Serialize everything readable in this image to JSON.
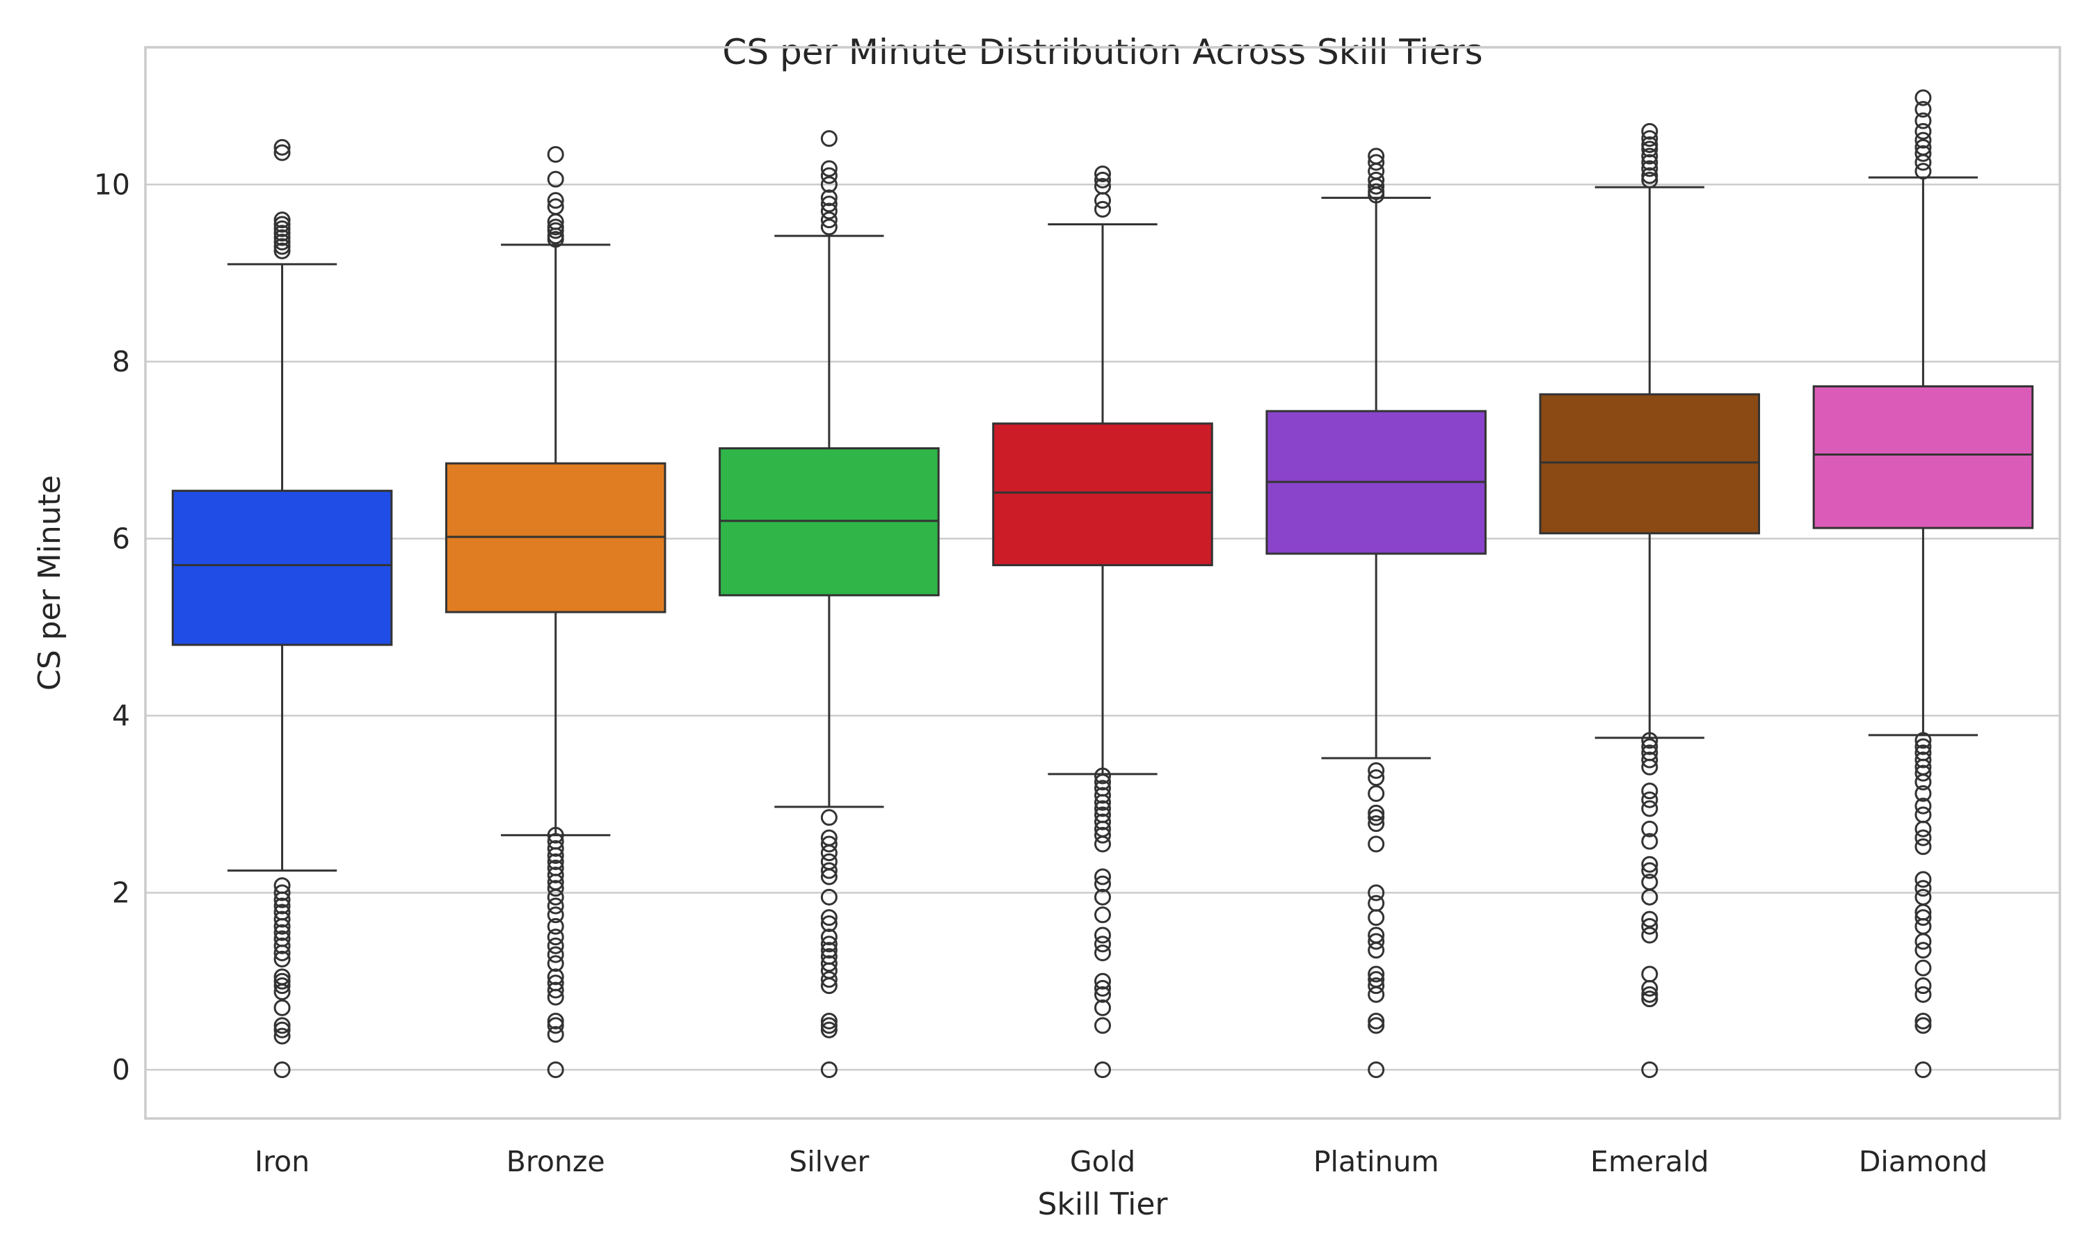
{
  "chart_data": {
    "type": "box",
    "title": "CS per Minute Distribution Across Skill Tiers",
    "xlabel": "Skill Tier",
    "ylabel": "CS per Minute",
    "ylim": [
      -0.55,
      11.55
    ],
    "yticks": [
      0,
      2,
      4,
      6,
      8,
      10
    ],
    "grid": true,
    "categories": [
      "Iron",
      "Bronze",
      "Silver",
      "Gold",
      "Platinum",
      "Emerald",
      "Diamond"
    ],
    "series": [
      {
        "category": "Iron",
        "color": "#1f4de6",
        "whisker_low": 2.25,
        "q1": 4.8,
        "median": 5.7,
        "q3": 6.54,
        "whisker_high": 9.1,
        "outliers": [
          10.42,
          10.36,
          9.6,
          9.55,
          9.5,
          9.45,
          9.4,
          9.35,
          9.3,
          9.25,
          2.08,
          2.0,
          1.92,
          1.85,
          1.78,
          1.7,
          1.62,
          1.55,
          1.48,
          1.4,
          1.32,
          1.25,
          1.05,
          1.0,
          0.95,
          0.88,
          0.7,
          0.5,
          0.45,
          0.38,
          0.0
        ]
      },
      {
        "category": "Bronze",
        "color": "#e07d22",
        "whisker_low": 2.65,
        "q1": 5.17,
        "median": 6.02,
        "q3": 6.85,
        "whisker_high": 9.32,
        "outliers": [
          10.34,
          10.06,
          9.82,
          9.75,
          9.58,
          9.52,
          9.48,
          9.42,
          9.38,
          2.65,
          2.58,
          2.5,
          2.42,
          2.35,
          2.28,
          2.2,
          2.12,
          2.05,
          1.95,
          1.85,
          1.75,
          1.62,
          1.5,
          1.4,
          1.3,
          1.2,
          1.05,
          0.98,
          0.9,
          0.82,
          0.55,
          0.5,
          0.4,
          0.0
        ]
      },
      {
        "category": "Silver",
        "color": "#2fb548",
        "whisker_low": 2.97,
        "q1": 5.36,
        "median": 6.2,
        "q3": 7.02,
        "whisker_high": 9.42,
        "outliers": [
          10.52,
          10.18,
          10.1,
          10.0,
          9.85,
          9.78,
          9.7,
          9.6,
          9.52,
          2.85,
          2.62,
          2.55,
          2.45,
          2.35,
          2.25,
          2.18,
          1.95,
          1.72,
          1.65,
          1.5,
          1.42,
          1.35,
          1.28,
          1.2,
          1.12,
          1.02,
          0.95,
          0.55,
          0.5,
          0.45,
          0.0
        ]
      },
      {
        "category": "Gold",
        "color": "#cc1c28",
        "whisker_low": 3.34,
        "q1": 5.7,
        "median": 6.52,
        "q3": 7.3,
        "whisker_high": 9.55,
        "outliers": [
          10.12,
          10.05,
          9.98,
          9.82,
          9.72,
          3.32,
          3.25,
          3.18,
          3.1,
          3.02,
          2.95,
          2.88,
          2.8,
          2.72,
          2.65,
          2.55,
          2.18,
          2.1,
          1.95,
          1.75,
          1.52,
          1.42,
          1.32,
          1.0,
          0.92,
          0.85,
          0.7,
          0.5,
          0.0
        ]
      },
      {
        "category": "Platinum",
        "color": "#8a44cc",
        "whisker_low": 3.52,
        "q1": 5.83,
        "median": 6.64,
        "q3": 7.44,
        "whisker_high": 9.85,
        "outliers": [
          10.32,
          10.25,
          10.15,
          10.05,
          9.98,
          9.92,
          9.88,
          3.38,
          3.3,
          3.12,
          2.9,
          2.85,
          2.78,
          2.55,
          2.0,
          1.88,
          1.72,
          1.52,
          1.45,
          1.35,
          1.08,
          1.02,
          0.95,
          0.85,
          0.55,
          0.5,
          0.0
        ]
      },
      {
        "category": "Emerald",
        "color": "#8b4a14",
        "whisker_low": 3.75,
        "q1": 6.06,
        "median": 6.86,
        "q3": 7.63,
        "whisker_high": 9.97,
        "outliers": [
          10.6,
          10.52,
          10.45,
          10.4,
          10.32,
          10.25,
          10.18,
          10.1,
          10.05,
          3.72,
          3.65,
          3.58,
          3.5,
          3.42,
          3.15,
          3.05,
          2.95,
          2.72,
          2.58,
          2.32,
          2.25,
          2.12,
          1.95,
          1.7,
          1.62,
          1.52,
          1.08,
          0.92,
          0.85,
          0.8,
          0.0
        ]
      },
      {
        "category": "Diamond",
        "color": "#db5cb8",
        "whisker_low": 3.78,
        "q1": 6.12,
        "median": 6.95,
        "q3": 7.72,
        "whisker_high": 10.08,
        "outliers": [
          10.98,
          10.85,
          10.72,
          10.6,
          10.5,
          10.42,
          10.35,
          10.25,
          10.15,
          3.72,
          3.65,
          3.58,
          3.5,
          3.42,
          3.35,
          3.25,
          3.12,
          2.98,
          2.88,
          2.72,
          2.62,
          2.52,
          2.15,
          2.05,
          1.95,
          1.78,
          1.72,
          1.62,
          1.45,
          1.35,
          1.15,
          0.95,
          0.85,
          0.55,
          0.5,
          0.0
        ]
      }
    ]
  }
}
